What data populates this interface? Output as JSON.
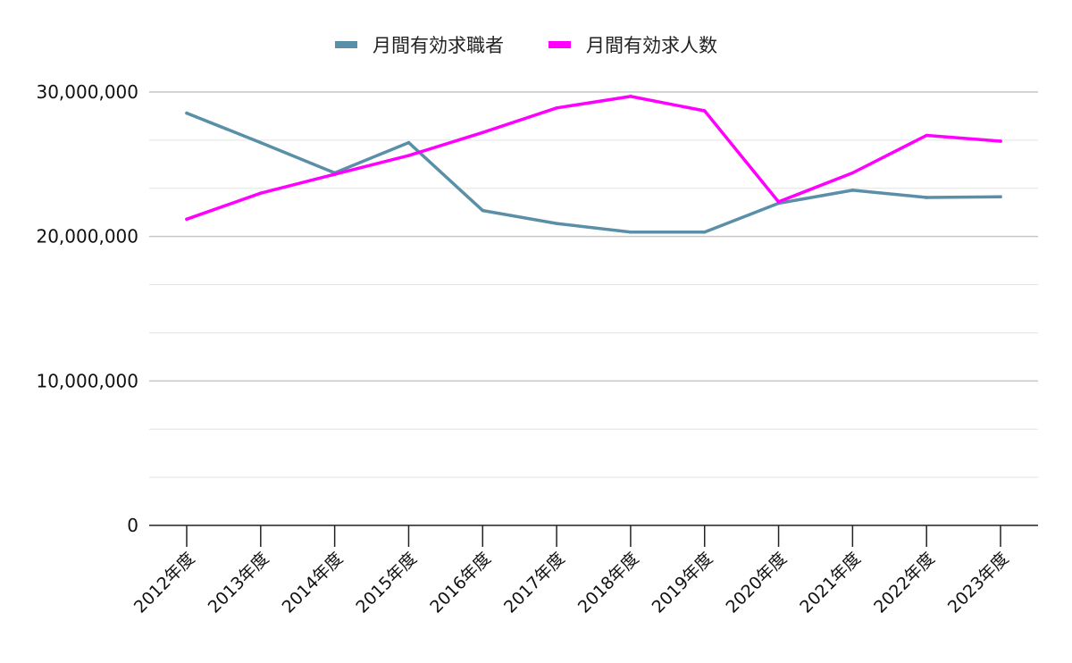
{
  "chart_data": {
    "type": "line",
    "categories": [
      "2012年度",
      "2013年度",
      "2014年度",
      "2015年度",
      "2016年度",
      "2017年度",
      "2018年度",
      "2019年度",
      "2020年度",
      "2021年度",
      "2022年度",
      "2023年度"
    ],
    "series": [
      {
        "name": "月間有効求職者",
        "color": "#5b8fa8",
        "values": [
          28540000,
          26500000,
          24400000,
          26500000,
          21800000,
          20900000,
          20300000,
          20300000,
          22300000,
          23200000,
          22700000,
          22750000
        ]
      },
      {
        "name": "月間有効求人数",
        "color": "#ff00ff",
        "values": [
          21200000,
          23000000,
          24300000,
          25600000,
          27200000,
          28900000,
          29700000,
          28700000,
          22400000,
          24400000,
          27000000,
          26600000
        ]
      }
    ],
    "y_ticks": [
      "0",
      "10,000,000",
      "20,000,000",
      "30,000,000"
    ],
    "ylim": [
      0,
      30000000
    ],
    "major_tick_step": 10000000,
    "minor_gridlines_per_major": 3,
    "grid": true,
    "legend_position": "top-center",
    "title": "",
    "xlabel": "",
    "ylabel": ""
  }
}
